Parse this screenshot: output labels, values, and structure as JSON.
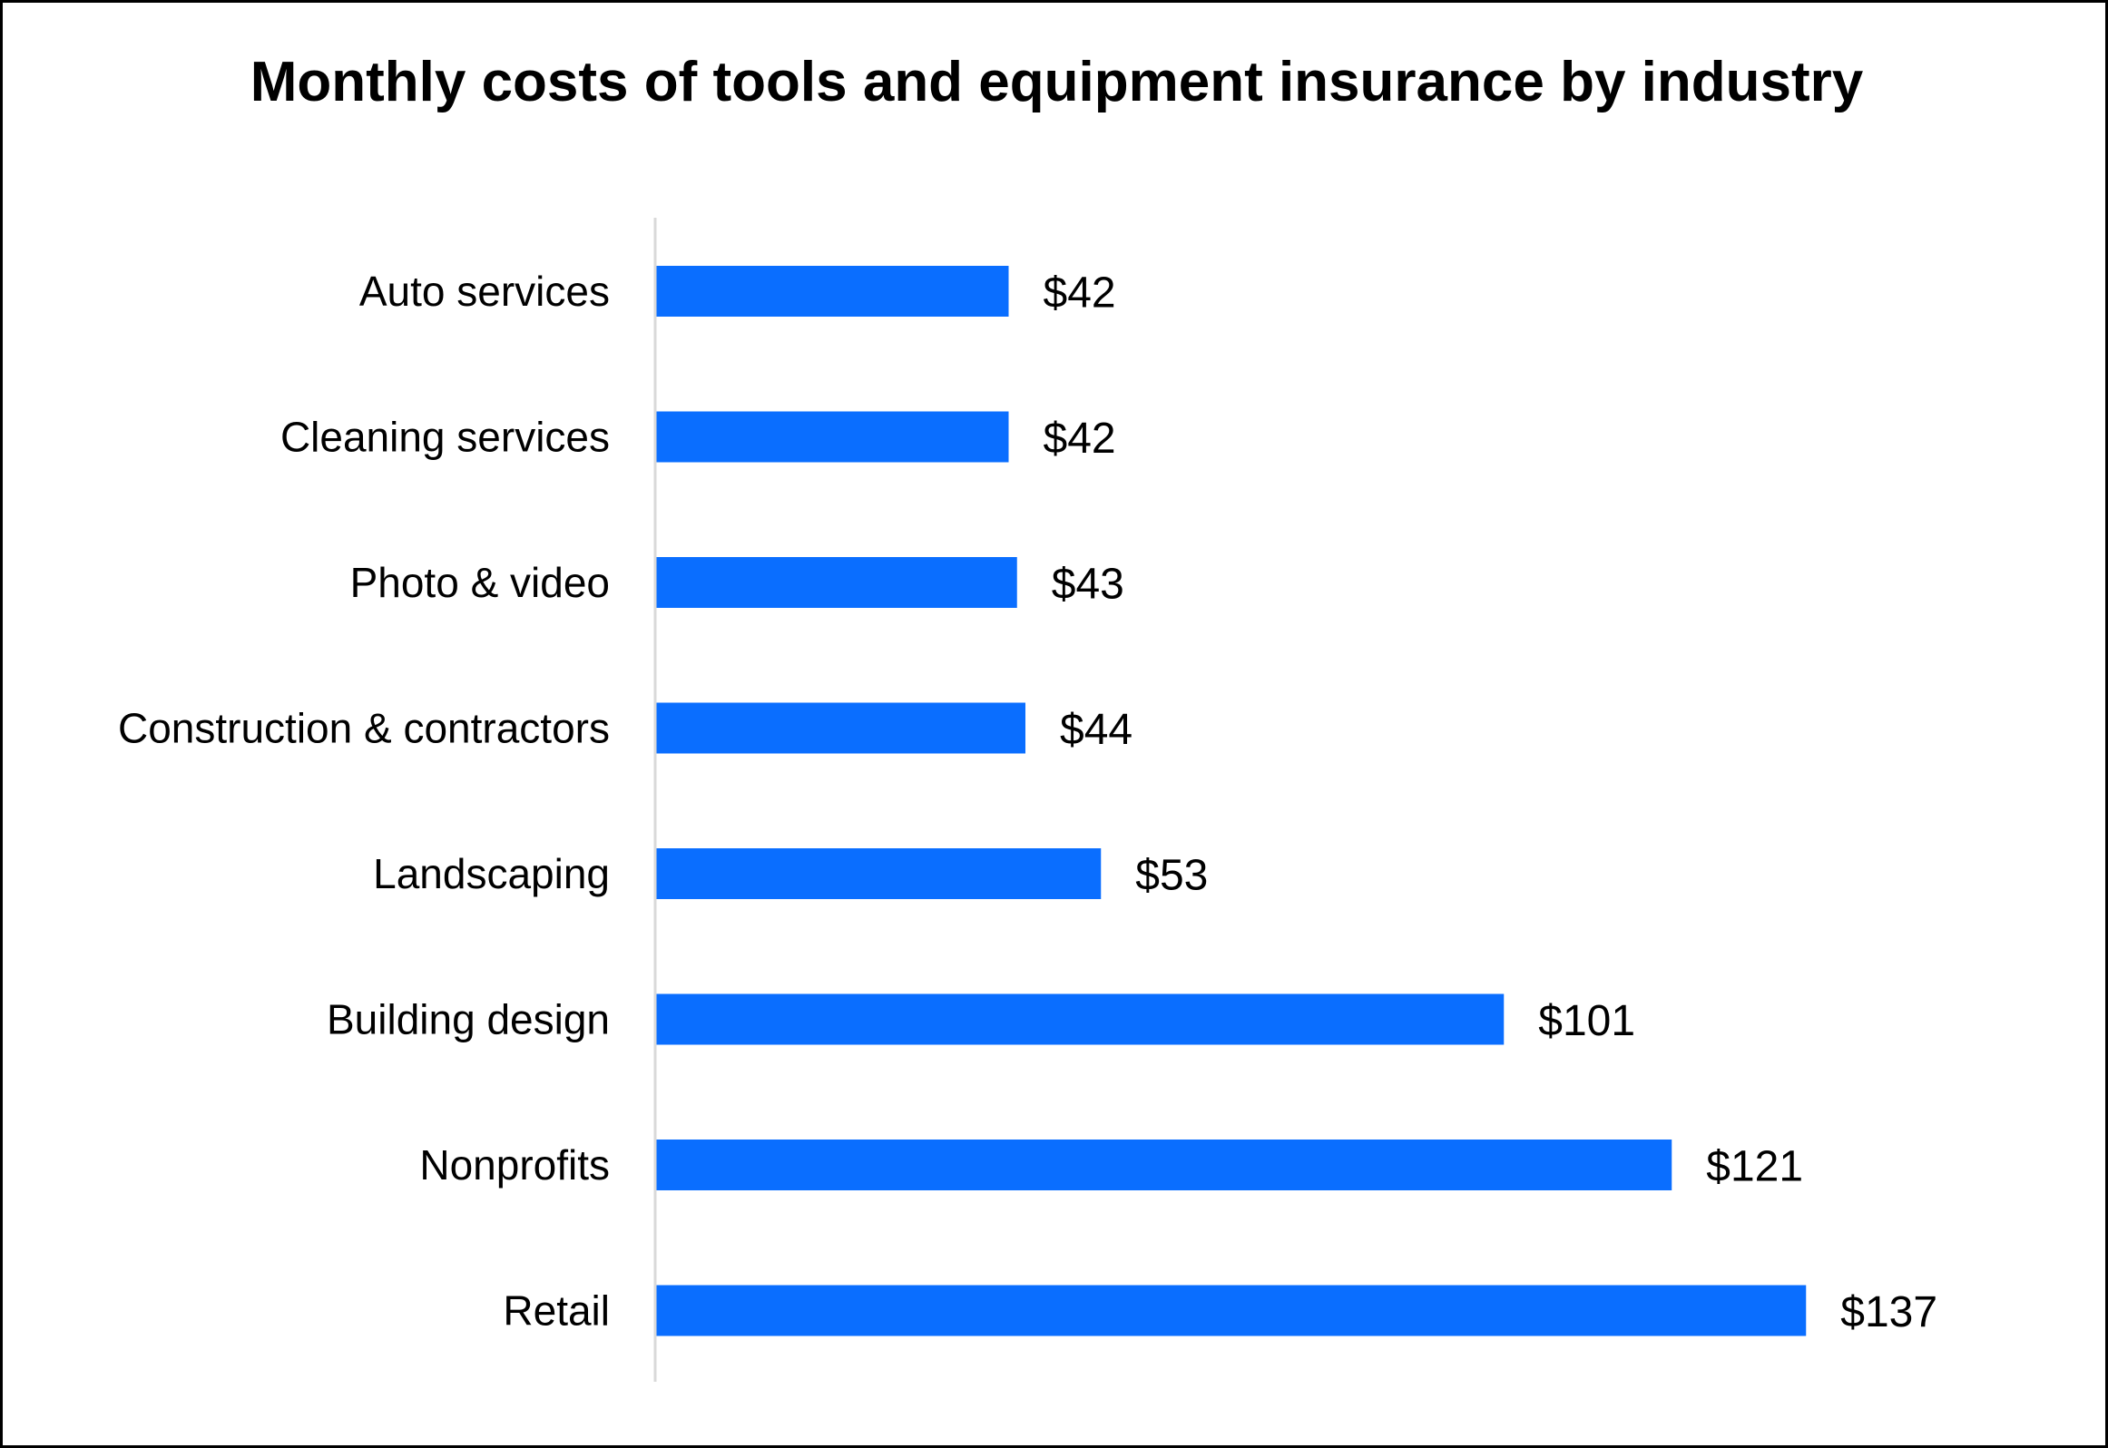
{
  "chart_data": {
    "type": "bar",
    "orientation": "horizontal",
    "title": "Monthly costs of tools and equipment insurance by industry",
    "xlabel": "",
    "ylabel": "",
    "categories": [
      "Auto services",
      "Cleaning services",
      "Photo & video",
      "Construction & contractors",
      "Landscaping",
      "Building design",
      "Nonprofits",
      "Retail"
    ],
    "values": [
      42,
      42,
      43,
      44,
      53,
      101,
      121,
      137
    ],
    "value_labels": [
      "$42",
      "$42",
      "$43",
      "$44",
      "$53",
      "$101",
      "$121",
      "$137"
    ],
    "xlim": [
      0,
      150
    ],
    "grid": false,
    "legend": "none",
    "bar_color": "#0A6EFF",
    "axis_color": "#D9D9D9"
  }
}
